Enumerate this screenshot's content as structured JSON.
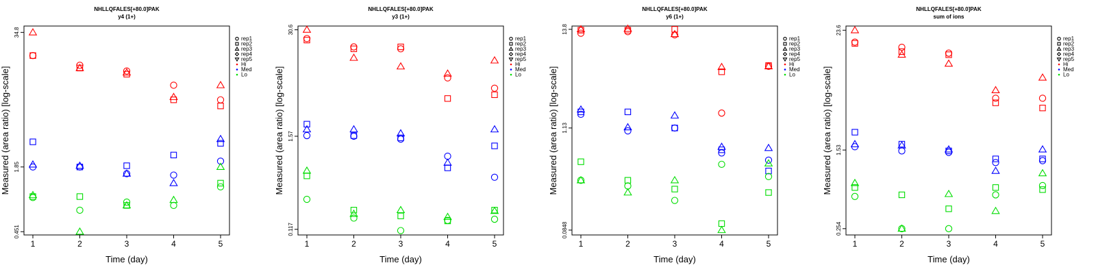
{
  "chart_data": [
    {
      "type": "scatter",
      "title": "NHLLQFALES[+80.0]PAK",
      "subtitle": "y4 (1+)",
      "xlabel": "Time (day)",
      "ylabel": "Measured (area ratio) [log-scale]",
      "x_ticks": [
        "1",
        "2",
        "3",
        "4",
        "5"
      ],
      "y_ticks": [
        {
          "value": 34.8,
          "label": "34.8"
        },
        {
          "value": 1.85,
          "label": "1.85"
        },
        {
          "value": 0.451,
          "label": "0.451"
        }
      ],
      "ylim": [
        0.42,
        40
      ],
      "scale": "log",
      "legend_position": "right",
      "legend": [
        {
          "label": "rep1",
          "shape": "circle"
        },
        {
          "label": "rep2",
          "shape": "square"
        },
        {
          "label": "rep3",
          "shape": "triangle-up"
        },
        {
          "label": "rep4",
          "shape": "diamond"
        },
        {
          "label": "rep5",
          "shape": "triangle-down"
        },
        {
          "label": "Hi",
          "color": "#ff0000"
        },
        {
          "label": "Med",
          "color": "#0000ff"
        },
        {
          "label": "Lo",
          "color": "#00dd00"
        }
      ],
      "series": [
        {
          "group": "Hi",
          "rep": "rep1",
          "values": [
            21,
            17,
            15,
            11,
            8
          ]
        },
        {
          "group": "Hi",
          "rep": "rep2",
          "values": [
            21,
            16,
            14,
            8,
            7
          ]
        },
        {
          "group": "Hi",
          "rep": "rep3",
          "values": [
            34.8,
            16,
            14.5,
            8.5,
            11
          ]
        },
        {
          "group": "Med",
          "rep": "rep1",
          "values": [
            1.85,
            1.85,
            1.6,
            1.55,
            2.1
          ]
        },
        {
          "group": "Med",
          "rep": "rep2",
          "values": [
            3.2,
            1.85,
            1.9,
            2.4,
            3.1
          ]
        },
        {
          "group": "Med",
          "rep": "rep3",
          "values": [
            1.95,
            1.9,
            1.6,
            1.3,
            3.4
          ]
        },
        {
          "group": "Lo",
          "rep": "rep1",
          "values": [
            0.95,
            0.72,
            0.86,
            0.8,
            1.2
          ]
        },
        {
          "group": "Lo",
          "rep": "rep2",
          "values": [
            0.97,
            0.97,
            0.8,
            null,
            1.3
          ]
        },
        {
          "group": "Lo",
          "rep": "rep3",
          "values": [
            1.0,
            0.451,
            0.8,
            0.9,
            1.85
          ]
        }
      ]
    },
    {
      "type": "scatter",
      "title": "NHLLQFALES[+80.0]PAK",
      "subtitle": "y3 (1+)",
      "xlabel": "Time (day)",
      "ylabel": "Measured (area ratio) [log-scale]",
      "x_ticks": [
        "1",
        "2",
        "3",
        "4",
        "5"
      ],
      "y_ticks": [
        {
          "value": 30.6,
          "label": "30.6"
        },
        {
          "value": 1.57,
          "label": "1.57"
        },
        {
          "value": 0.117,
          "label": "0.117"
        }
      ],
      "ylim": [
        0.1,
        34
      ],
      "scale": "log",
      "legend_position": "right",
      "legend": [
        {
          "label": "rep1",
          "shape": "circle"
        },
        {
          "label": "rep2",
          "shape": "square"
        },
        {
          "label": "rep3",
          "shape": "triangle-up"
        },
        {
          "label": "rep4",
          "shape": "diamond"
        },
        {
          "label": "rep5",
          "shape": "triangle-down"
        },
        {
          "label": "Hi",
          "color": "#ff0000"
        },
        {
          "label": "Med",
          "color": "#0000ff"
        },
        {
          "label": "Lo",
          "color": "#00dd00"
        }
      ],
      "series": [
        {
          "group": "Hi",
          "rep": "rep1",
          "values": [
            24,
            19,
            18,
            8,
            6
          ]
        },
        {
          "group": "Hi",
          "rep": "rep2",
          "values": [
            23,
            18,
            19,
            4.5,
            5
          ]
        },
        {
          "group": "Hi",
          "rep": "rep3",
          "values": [
            30.6,
            14,
            11,
            9,
            13
          ]
        },
        {
          "group": "Med",
          "rep": "rep1",
          "values": [
            1.6,
            1.57,
            1.45,
            0.9,
            0.5
          ]
        },
        {
          "group": "Med",
          "rep": "rep2",
          "values": [
            2.2,
            1.6,
            1.5,
            0.65,
            1.2
          ]
        },
        {
          "group": "Med",
          "rep": "rep3",
          "values": [
            1.9,
            1.9,
            1.7,
            0.75,
            1.9
          ]
        },
        {
          "group": "Lo",
          "rep": "rep1",
          "values": [
            0.27,
            0.16,
            0.113,
            0.15,
            0.155
          ]
        },
        {
          "group": "Lo",
          "rep": "rep2",
          "values": [
            0.52,
            0.2,
            0.17,
            0.148,
            0.2
          ]
        },
        {
          "group": "Lo",
          "rep": "rep3",
          "values": [
            0.6,
            0.18,
            0.2,
            0.165,
            0.195
          ]
        }
      ]
    },
    {
      "type": "scatter",
      "title": "NHLLQFALES[+80.0]PAK",
      "subtitle": "y6 (1+)",
      "xlabel": "Time (day)",
      "ylabel": "Measured (area ratio) [log-scale]",
      "x_ticks": [
        "1",
        "2",
        "3",
        "4",
        "5"
      ],
      "y_ticks": [
        {
          "value": 13.8,
          "label": "13.8"
        },
        {
          "value": 1.13,
          "label": "1.13"
        },
        {
          "value": 0.0848,
          "label": "0.0848"
        }
      ],
      "ylim": [
        0.075,
        15
      ],
      "scale": "log",
      "legend_position": "right",
      "legend": [
        {
          "label": "rep1",
          "shape": "circle"
        },
        {
          "label": "rep2",
          "shape": "square"
        },
        {
          "label": "rep3",
          "shape": "triangle-up"
        },
        {
          "label": "rep4",
          "shape": "diamond"
        },
        {
          "label": "rep5",
          "shape": "triangle-down"
        },
        {
          "label": "Hi",
          "color": "#ff0000"
        },
        {
          "label": "Med",
          "color": "#0000ff"
        },
        {
          "label": "Lo",
          "color": "#00dd00"
        }
      ],
      "series": [
        {
          "group": "Hi",
          "rep": "rep1",
          "values": [
            12.5,
            13,
            12,
            1.65,
            5.4
          ]
        },
        {
          "group": "Hi",
          "rep": "rep2",
          "values": [
            13.5,
            13.5,
            13.8,
            4.7,
            5.5
          ]
        },
        {
          "group": "Hi",
          "rep": "rep3",
          "values": [
            13.8,
            14,
            12.2,
            5.3,
            5.4
          ]
        },
        {
          "group": "Med",
          "rep": "rep1",
          "values": [
            1.6,
            1.05,
            1.13,
            0.6,
            0.5
          ]
        },
        {
          "group": "Med",
          "rep": "rep2",
          "values": [
            1.7,
            1.7,
            1.13,
            0.65,
            0.38
          ]
        },
        {
          "group": "Med",
          "rep": "rep3",
          "values": [
            1.8,
            1.15,
            1.55,
            0.7,
            0.68
          ]
        },
        {
          "group": "Lo",
          "rep": "rep1",
          "values": [
            0.3,
            0.26,
            0.18,
            0.45,
            0.33
          ]
        },
        {
          "group": "Lo",
          "rep": "rep2",
          "values": [
            0.48,
            0.3,
            0.24,
            0.1,
            0.22
          ]
        },
        {
          "group": "Lo",
          "rep": "rep3",
          "values": [
            0.3,
            0.22,
            0.3,
            0.0848,
            0.46
          ]
        }
      ]
    },
    {
      "type": "scatter",
      "title": "NHLLQFALES[+80.0]PAK",
      "subtitle": "sum of ions",
      "xlabel": "Time (day)",
      "ylabel": "Measured (area ratio) [log-scale]",
      "x_ticks": [
        "1",
        "2",
        "3",
        "4",
        "5"
      ],
      "y_ticks": [
        {
          "value": 23.6,
          "label": "23.6"
        },
        {
          "value": 1.53,
          "label": "1.53"
        },
        {
          "value": 0.254,
          "label": "0.254"
        }
      ],
      "ylim": [
        0.22,
        26
      ],
      "scale": "log",
      "legend_position": "right",
      "legend": [
        {
          "label": "rep1",
          "shape": "circle"
        },
        {
          "label": "rep2",
          "shape": "square"
        },
        {
          "label": "rep3",
          "shape": "triangle-up"
        },
        {
          "label": "rep4",
          "shape": "diamond"
        },
        {
          "label": "rep5",
          "shape": "triangle-down"
        },
        {
          "label": "Hi",
          "color": "#ff0000"
        },
        {
          "label": "Med",
          "color": "#0000ff"
        },
        {
          "label": "Lo",
          "color": "#00dd00"
        }
      ],
      "series": [
        {
          "group": "Hi",
          "rep": "rep1",
          "values": [
            18,
            16,
            14,
            5,
            5
          ]
        },
        {
          "group": "Hi",
          "rep": "rep2",
          "values": [
            17.5,
            14.5,
            13.5,
            4.5,
            4
          ]
        },
        {
          "group": "Hi",
          "rep": "rep3",
          "values": [
            23.6,
            13.5,
            11,
            6,
            8
          ]
        },
        {
          "group": "Med",
          "rep": "rep1",
          "values": [
            1.65,
            1.5,
            1.45,
            1.15,
            1.2
          ]
        },
        {
          "group": "Med",
          "rep": "rep2",
          "values": [
            2.3,
            1.75,
            1.5,
            1.25,
            1.25
          ]
        },
        {
          "group": "Med",
          "rep": "rep3",
          "values": [
            1.75,
            1.7,
            1.55,
            0.95,
            1.55
          ]
        },
        {
          "group": "Lo",
          "rep": "rep1",
          "values": [
            0.53,
            0.254,
            0.254,
            0.55,
            0.68
          ]
        },
        {
          "group": "Lo",
          "rep": "rep2",
          "values": [
            0.65,
            0.55,
            0.4,
            0.65,
            0.62
          ]
        },
        {
          "group": "Lo",
          "rep": "rep3",
          "values": [
            0.72,
            0.254,
            0.56,
            0.38,
            0.9
          ]
        }
      ]
    }
  ]
}
